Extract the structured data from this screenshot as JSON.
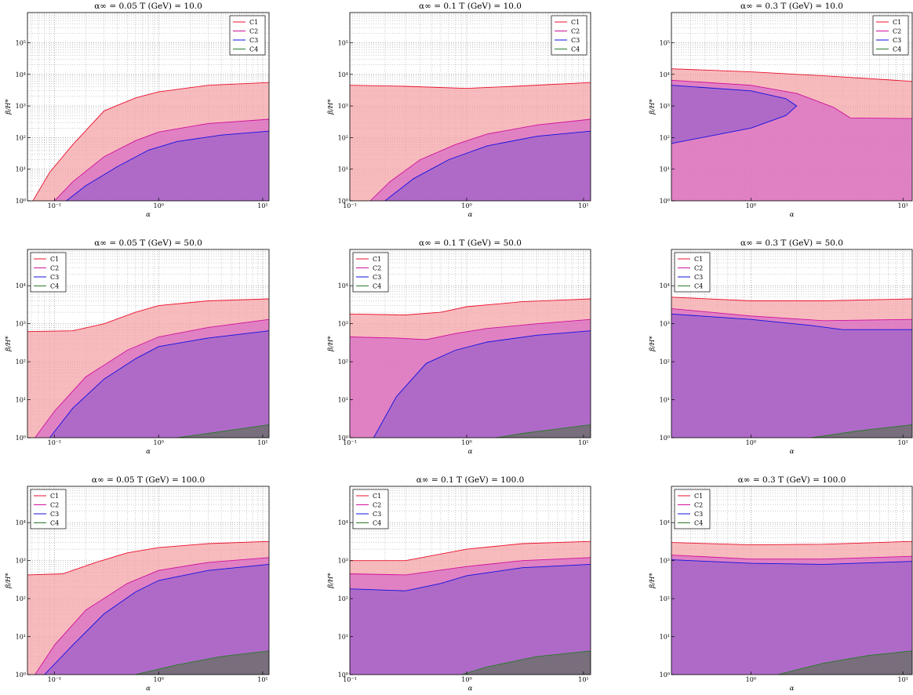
{
  "figure": {
    "ylabel": "β/H*",
    "xlabel": "α",
    "legend": [
      "C1",
      "C2",
      "C3",
      "C4"
    ],
    "colors": {
      "C1": "#e8112d",
      "C2": "#d0109a",
      "C3": "#1010e0",
      "C4": "#2a7a2a",
      "C1_fill": "#f4a4a8",
      "C2_fill": "#d86ec6",
      "C3_fill": "#9f63c9",
      "C4_fill": "#6e6e6e"
    }
  },
  "chart_data": [
    {
      "type": "area",
      "title": "α∞ = 0.05  T (GeV) = 10.0",
      "xscale": "log",
      "yscale": "log",
      "xlim": [
        0.055,
        11.5
      ],
      "ylim": [
        1,
        900000
      ],
      "xticks": [
        {
          "v": 0.1,
          "label": "10⁻¹"
        },
        {
          "v": 1,
          "label": "10⁰"
        },
        {
          "v": 10,
          "label": "10¹"
        }
      ],
      "yticks": [
        {
          "v": 1,
          "label": "10⁰"
        },
        {
          "v": 10,
          "label": "10¹"
        },
        {
          "v": 100,
          "label": "10²"
        },
        {
          "v": 1000,
          "label": "10³"
        },
        {
          "v": 10000,
          "label": "10⁴"
        },
        {
          "v": 100000,
          "label": "10⁵"
        }
      ],
      "legend_loc": "upper right",
      "grid": true,
      "series": [
        {
          "name": "C1",
          "x": [
            0.062,
            0.09,
            0.15,
            0.3,
            0.6,
            1,
            3,
            11.5
          ],
          "y": [
            1,
            8,
            60,
            700,
            1800,
            2800,
            4500,
            5500
          ]
        },
        {
          "name": "C2",
          "x": [
            0.1,
            0.15,
            0.3,
            0.6,
            1,
            3,
            11.5
          ],
          "y": [
            1,
            4,
            25,
            80,
            150,
            280,
            380
          ]
        },
        {
          "name": "C3",
          "x": [
            0.13,
            0.2,
            0.4,
            0.8,
            1.5,
            4,
            11.5
          ],
          "y": [
            1,
            3,
            12,
            40,
            75,
            120,
            160
          ]
        },
        {
          "name": "C4",
          "x": [],
          "y": []
        }
      ]
    },
    {
      "type": "area",
      "title": "α∞ = 0.1  T (GeV) = 10.0",
      "xscale": "log",
      "yscale": "log",
      "xlim": [
        0.1,
        11.5
      ],
      "ylim": [
        1,
        900000
      ],
      "xticks": [
        {
          "v": 0.1,
          "label": "10⁻¹"
        },
        {
          "v": 1,
          "label": "10⁰"
        },
        {
          "v": 10,
          "label": "10¹"
        }
      ],
      "yticks": [
        {
          "v": 1,
          "label": "10⁰"
        },
        {
          "v": 10,
          "label": "10¹"
        },
        {
          "v": 100,
          "label": "10²"
        },
        {
          "v": 1000,
          "label": "10³"
        },
        {
          "v": 10000,
          "label": "10⁴"
        },
        {
          "v": 100000,
          "label": "10⁵"
        }
      ],
      "legend_loc": "upper right",
      "grid": true,
      "series": [
        {
          "name": "C1",
          "x": [
            0.1,
            0.3,
            1,
            3,
            11.5
          ],
          "y": [
            4500,
            4200,
            3600,
            4300,
            5500
          ]
        },
        {
          "name": "C2",
          "x": [
            0.15,
            0.22,
            0.4,
            0.8,
            1.5,
            4,
            11.5
          ],
          "y": [
            1,
            4,
            20,
            60,
            130,
            250,
            380
          ]
        },
        {
          "name": "C3",
          "x": [
            0.2,
            0.35,
            0.7,
            1.5,
            4,
            11.5
          ],
          "y": [
            1,
            5,
            20,
            55,
            110,
            160
          ]
        },
        {
          "name": "C4",
          "x": [],
          "y": []
        }
      ]
    },
    {
      "type": "area",
      "title": "α∞ = 0.3  T (GeV) = 10.0",
      "xscale": "log",
      "yscale": "log",
      "xlim": [
        0.3,
        11.5
      ],
      "ylim": [
        1,
        900000
      ],
      "xticks": [
        {
          "v": 1,
          "label": "10⁰"
        },
        {
          "v": 10,
          "label": "10¹"
        }
      ],
      "yticks": [
        {
          "v": 1,
          "label": "10⁰"
        },
        {
          "v": 10,
          "label": "10¹"
        },
        {
          "v": 100,
          "label": "10²"
        },
        {
          "v": 1000,
          "label": "10³"
        },
        {
          "v": 10000,
          "label": "10⁴"
        },
        {
          "v": 100000,
          "label": "10⁵"
        }
      ],
      "legend_loc": "upper right",
      "grid": true,
      "series": [
        {
          "name": "C1",
          "x": [
            0.3,
            1,
            3,
            11.5
          ],
          "y": [
            15000,
            12000,
            9000,
            6000
          ]
        },
        {
          "name": "C2",
          "x": [
            0.3,
            1,
            2,
            3.5,
            4.5,
            11.5
          ],
          "y": [
            6500,
            4500,
            2500,
            900,
            420,
            400
          ]
        },
        {
          "name": "C3",
          "x": [
            0.3,
            1,
            1.7,
            2,
            1.7,
            1,
            0.3
          ],
          "y": [
            4500,
            3000,
            1700,
            1000,
            500,
            200,
            65
          ]
        },
        {
          "name": "C4",
          "x": [],
          "y": []
        }
      ]
    },
    {
      "type": "area",
      "title": "α∞ = 0.05  T (GeV) = 50.0",
      "xscale": "log",
      "yscale": "log",
      "xlim": [
        0.055,
        11.5
      ],
      "ylim": [
        1,
        90000
      ],
      "xticks": [
        {
          "v": 0.1,
          "label": "10⁻¹"
        },
        {
          "v": 1,
          "label": "10⁰"
        },
        {
          "v": 10,
          "label": "10¹"
        }
      ],
      "yticks": [
        {
          "v": 1,
          "label": "10⁰"
        },
        {
          "v": 10,
          "label": "10¹"
        },
        {
          "v": 100,
          "label": "10²"
        },
        {
          "v": 1000,
          "label": "10³"
        },
        {
          "v": 10000,
          "label": "10⁴"
        }
      ],
      "legend_loc": "upper left",
      "grid": true,
      "series": [
        {
          "name": "C1",
          "x": [
            0.055,
            0.15,
            0.3,
            0.6,
            1,
            3,
            11.5
          ],
          "y": [
            620,
            650,
            1000,
            2000,
            3000,
            4000,
            4500
          ]
        },
        {
          "name": "C2",
          "x": [
            0.065,
            0.1,
            0.2,
            0.5,
            1,
            3,
            11.5
          ],
          "y": [
            1,
            5,
            40,
            200,
            450,
            800,
            1300
          ]
        },
        {
          "name": "C3",
          "x": [
            0.09,
            0.15,
            0.3,
            0.6,
            1,
            3,
            11.5
          ],
          "y": [
            1,
            6,
            35,
            120,
            250,
            420,
            650
          ]
        },
        {
          "name": "C4",
          "x": [
            1.5,
            3,
            6,
            11.5
          ],
          "y": [
            1,
            1.3,
            1.7,
            2.2
          ]
        }
      ]
    },
    {
      "type": "area",
      "title": "α∞ = 0.1  T (GeV) = 50.0",
      "xscale": "log",
      "yscale": "log",
      "xlim": [
        0.1,
        11.5
      ],
      "ylim": [
        1,
        90000
      ],
      "xticks": [
        {
          "v": 0.1,
          "label": "10⁻¹"
        },
        {
          "v": 1,
          "label": "10⁰"
        },
        {
          "v": 10,
          "label": "10¹"
        }
      ],
      "yticks": [
        {
          "v": 1,
          "label": "10⁰"
        },
        {
          "v": 10,
          "label": "10¹"
        },
        {
          "v": 100,
          "label": "10²"
        },
        {
          "v": 1000,
          "label": "10³"
        },
        {
          "v": 10000,
          "label": "10⁴"
        }
      ],
      "legend_loc": "upper left",
      "grid": true,
      "series": [
        {
          "name": "C1",
          "x": [
            0.1,
            0.3,
            0.6,
            1,
            3,
            11.5
          ],
          "y": [
            1800,
            1700,
            2000,
            2800,
            3800,
            4500
          ]
        },
        {
          "name": "C2",
          "x": [
            0.1,
            0.25,
            0.45,
            0.8,
            1.5,
            4,
            11.5
          ],
          "y": [
            450,
            420,
            380,
            550,
            750,
            1000,
            1300
          ]
        },
        {
          "name": "C3",
          "x": [
            0.16,
            0.25,
            0.45,
            0.8,
            1.5,
            4,
            11.5
          ],
          "y": [
            1,
            12,
            90,
            200,
            330,
            500,
            650
          ]
        },
        {
          "name": "C4",
          "x": [
            1.8,
            3,
            6,
            11.5
          ],
          "y": [
            1,
            1.3,
            1.7,
            2.2
          ]
        }
      ]
    },
    {
      "type": "area",
      "title": "α∞ = 0.3  T (GeV) = 50.0",
      "xscale": "log",
      "yscale": "log",
      "xlim": [
        0.3,
        11.5
      ],
      "ylim": [
        1,
        90000
      ],
      "xticks": [
        {
          "v": 1,
          "label": "10⁰"
        },
        {
          "v": 10,
          "label": "10¹"
        }
      ],
      "yticks": [
        {
          "v": 1,
          "label": "10⁰"
        },
        {
          "v": 10,
          "label": "10¹"
        },
        {
          "v": 100,
          "label": "10²"
        },
        {
          "v": 1000,
          "label": "10³"
        },
        {
          "v": 10000,
          "label": "10⁴"
        }
      ],
      "legend_loc": "upper left",
      "grid": true,
      "series": [
        {
          "name": "C1",
          "x": [
            0.3,
            1,
            3,
            11.5
          ],
          "y": [
            5000,
            4000,
            4000,
            4500
          ]
        },
        {
          "name": "C2",
          "x": [
            0.3,
            1,
            3,
            11.5
          ],
          "y": [
            2500,
            1600,
            1200,
            1300
          ]
        },
        {
          "name": "C3",
          "x": [
            0.3,
            1,
            2.5,
            4,
            11.5
          ],
          "y": [
            1800,
            1300,
            900,
            700,
            700
          ]
        },
        {
          "name": "C4",
          "x": [
            2.5,
            5,
            11.5
          ],
          "y": [
            1,
            1.5,
            2.2
          ]
        }
      ]
    },
    {
      "type": "area",
      "title": "α∞ = 0.05  T (GeV) = 100.0",
      "xscale": "log",
      "yscale": "log",
      "xlim": [
        0.055,
        11.5
      ],
      "ylim": [
        1,
        90000
      ],
      "xticks": [
        {
          "v": 0.1,
          "label": "10⁻¹"
        },
        {
          "v": 1,
          "label": "10⁰"
        },
        {
          "v": 10,
          "label": "10¹"
        }
      ],
      "yticks": [
        {
          "v": 1,
          "label": "10⁰"
        },
        {
          "v": 10,
          "label": "10¹"
        },
        {
          "v": 100,
          "label": "10²"
        },
        {
          "v": 1000,
          "label": "10³"
        },
        {
          "v": 10000,
          "label": "10⁴"
        }
      ],
      "legend_loc": "upper left",
      "grid": true,
      "series": [
        {
          "name": "C1",
          "x": [
            0.055,
            0.12,
            0.25,
            0.5,
            1,
            3,
            11.5
          ],
          "y": [
            420,
            450,
            900,
            1600,
            2200,
            2800,
            3200
          ]
        },
        {
          "name": "C2",
          "x": [
            0.065,
            0.1,
            0.2,
            0.5,
            1,
            3,
            11.5
          ],
          "y": [
            1,
            6,
            50,
            250,
            550,
            900,
            1200
          ]
        },
        {
          "name": "C3",
          "x": [
            0.08,
            0.15,
            0.3,
            0.6,
            1,
            3,
            11.5
          ],
          "y": [
            1,
            6,
            40,
            150,
            300,
            550,
            800
          ]
        },
        {
          "name": "C4",
          "x": [
            0.6,
            1.5,
            4,
            11.5
          ],
          "y": [
            1,
            1.8,
            3,
            4.2
          ]
        }
      ]
    },
    {
      "type": "area",
      "title": "α∞ = 0.1  T (GeV) = 100.0",
      "xscale": "log",
      "yscale": "log",
      "xlim": [
        0.1,
        11.5
      ],
      "ylim": [
        1,
        90000
      ],
      "xticks": [
        {
          "v": 0.1,
          "label": "10⁻¹"
        },
        {
          "v": 1,
          "label": "10⁰"
        },
        {
          "v": 10,
          "label": "10¹"
        }
      ],
      "yticks": [
        {
          "v": 1,
          "label": "10⁰"
        },
        {
          "v": 10,
          "label": "10¹"
        },
        {
          "v": 100,
          "label": "10²"
        },
        {
          "v": 1000,
          "label": "10³"
        },
        {
          "v": 10000,
          "label": "10⁴"
        }
      ],
      "legend_loc": "upper left",
      "grid": true,
      "series": [
        {
          "name": "C1",
          "x": [
            0.1,
            0.3,
            1,
            3,
            11.5
          ],
          "y": [
            1000,
            1000,
            2000,
            2800,
            3200
          ]
        },
        {
          "name": "C2",
          "x": [
            0.1,
            0.3,
            1,
            3,
            11.5
          ],
          "y": [
            450,
            420,
            700,
            1000,
            1200
          ]
        },
        {
          "name": "C3",
          "x": [
            0.1,
            0.3,
            0.6,
            1,
            3,
            11.5
          ],
          "y": [
            180,
            160,
            250,
            400,
            650,
            800
          ]
        },
        {
          "name": "C4",
          "x": [
            0.9,
            1.5,
            4,
            11.5
          ],
          "y": [
            1,
            1.6,
            3,
            4.2
          ]
        }
      ]
    },
    {
      "type": "area",
      "title": "α∞ = 0.3  T (GeV) = 100.0",
      "xscale": "log",
      "yscale": "log",
      "xlim": [
        0.3,
        11.5
      ],
      "ylim": [
        1,
        90000
      ],
      "xticks": [
        {
          "v": 1,
          "label": "10⁰"
        },
        {
          "v": 10,
          "label": "10¹"
        }
      ],
      "yticks": [
        {
          "v": 1,
          "label": "10⁰"
        },
        {
          "v": 10,
          "label": "10¹"
        },
        {
          "v": 100,
          "label": "10²"
        },
        {
          "v": 1000,
          "label": "10³"
        },
        {
          "v": 10000,
          "label": "10⁴"
        }
      ],
      "legend_loc": "upper left",
      "grid": true,
      "series": [
        {
          "name": "C1",
          "x": [
            0.3,
            1,
            3,
            11.5
          ],
          "y": [
            3000,
            2600,
            2700,
            3200
          ]
        },
        {
          "name": "C2",
          "x": [
            0.3,
            1,
            3,
            11.5
          ],
          "y": [
            1400,
            1100,
            1100,
            1300
          ]
        },
        {
          "name": "C3",
          "x": [
            0.3,
            1,
            3,
            11.5
          ],
          "y": [
            1050,
            850,
            800,
            950
          ]
        },
        {
          "name": "C4",
          "x": [
            1.5,
            3,
            6,
            11.5
          ],
          "y": [
            1,
            2,
            3.2,
            4.2
          ]
        }
      ]
    }
  ]
}
